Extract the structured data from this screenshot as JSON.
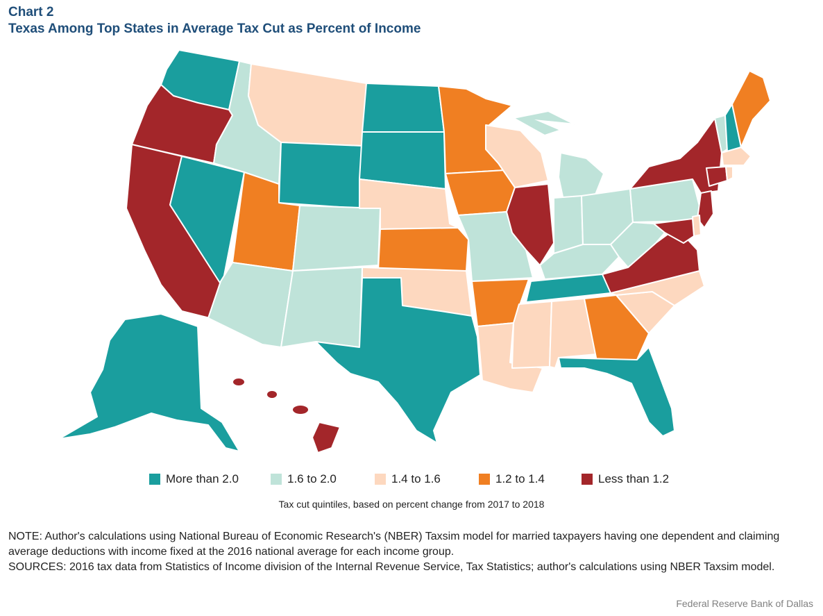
{
  "header": {
    "label": "Chart 2",
    "title": "Texas Among Top States in Average Tax Cut as Percent of Income"
  },
  "colors": {
    "q1": "#1a9e9e",
    "q2": "#bfe3d9",
    "q3": "#fdd8bf",
    "q4": "#f07f22",
    "q5": "#a3262a"
  },
  "legend": {
    "items": [
      {
        "label": "More than 2.0",
        "color": "#1a9e9e"
      },
      {
        "label": "1.6 to 2.0",
        "color": "#bfe3d9"
      },
      {
        "label": "1.4 to 1.6",
        "color": "#fdd8bf"
      },
      {
        "label": "1.2 to 1.4",
        "color": "#f07f22"
      },
      {
        "label": "Less than 1.2",
        "color": "#a3262a"
      }
    ],
    "caption": "Tax cut quintiles, based on percent change from 2017 to 2018"
  },
  "notes": {
    "note": "NOTE: Author's calculations using National Bureau of Economic Research's (NBER) Taxsim model for married taxpayers having one dependent and claiming average deductions with income fixed at the 2016 national average for each income group.",
    "sources": "SOURCES: 2016 tax data from Statistics of Income division of the Internal Revenue Service, Tax Statistics; author's calculations using NBER Taxsim model."
  },
  "credit": "Federal Reserve Bank of Dallas",
  "map_data": {
    "type": "choropleth",
    "states": {
      "WA": "q1",
      "OR": "q5",
      "CA": "q5",
      "NV": "q1",
      "ID": "q2",
      "MT": "q3",
      "WY": "q1",
      "UT": "q4",
      "AZ": "q2",
      "CO": "q2",
      "NM": "q2",
      "ND": "q1",
      "SD": "q1",
      "NE": "q3",
      "KS": "q4",
      "OK": "q3",
      "TX": "q1",
      "MN": "q4",
      "IA": "q4",
      "MO": "q2",
      "AR": "q4",
      "LA": "q3",
      "WI": "q3",
      "IL": "q5",
      "MI": "q2",
      "IN": "q2",
      "OH": "q2",
      "KY": "q2",
      "TN": "q1",
      "MS": "q3",
      "AL": "q3",
      "GA": "q4",
      "FL": "q1",
      "SC": "q3",
      "NC": "q3",
      "VA": "q5",
      "WV": "q2",
      "PA": "q2",
      "NY": "q5",
      "VT": "q2",
      "NH": "q1",
      "ME": "q4",
      "MA": "q3",
      "CT": "q5",
      "RI": "q3",
      "NJ": "q5",
      "DE": "q3",
      "MD": "q5",
      "AK": "q1",
      "HI": "q5"
    }
  }
}
